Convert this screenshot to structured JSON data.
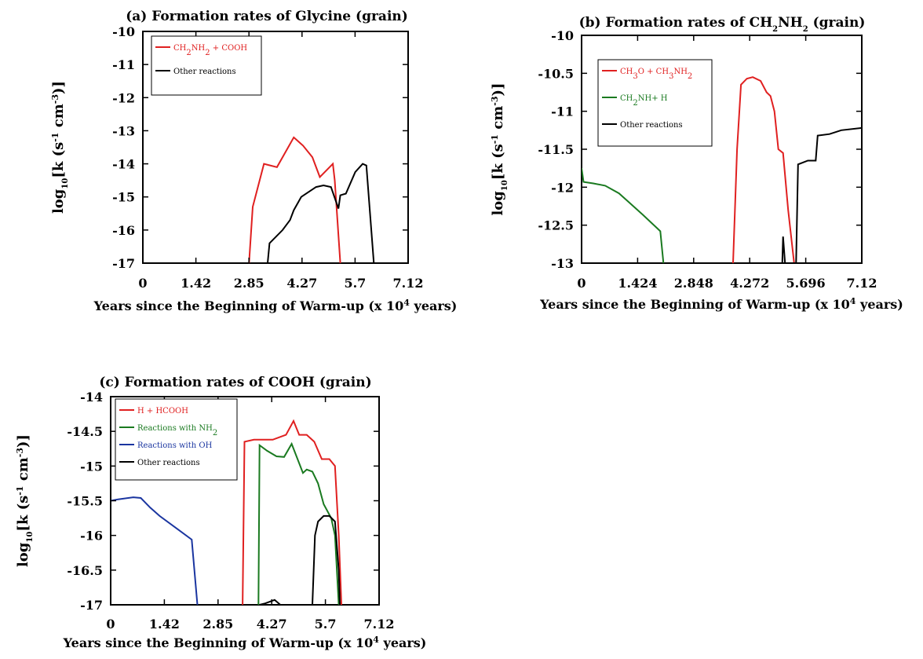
{
  "chart_data": [
    {
      "type": "line",
      "title_prefix": "(a) Formation rates of ",
      "title_species": "Glycine",
      "title_suffix": " (grain)",
      "xlabel": "Years since the Beginning of Warm-up (x 10",
      "xlabel_exp": "4",
      "xlabel_end": " years)",
      "ylabel": "log",
      "ylabel_sub": "10",
      "ylabel_mid": "[k (s",
      "ylabel_sup1": "-1",
      "ylabel_mid2": " cm",
      "ylabel_sup2": "-3",
      "ylabel_end": ")]",
      "xlim": [
        0,
        7.12
      ],
      "ylim": [
        -17,
        -10
      ],
      "xticks": [
        "0",
        "1.42",
        "2.85",
        "4.27",
        "5.7",
        "7.12"
      ],
      "yticks": [
        "-10",
        "-11",
        "-12",
        "-13",
        "-14",
        "-15",
        "-16",
        "-17"
      ],
      "legend_position": "top-left",
      "series": [
        {
          "name": "CH2NH2 + COOH",
          "color": "#e02020",
          "points": [
            [
              2.85,
              -17
            ],
            [
              2.95,
              -15.3
            ],
            [
              3.25,
              -14.0
            ],
            [
              3.6,
              -14.1
            ],
            [
              4.05,
              -13.2
            ],
            [
              4.3,
              -13.45
            ],
            [
              4.55,
              -13.8
            ],
            [
              4.75,
              -14.4
            ],
            [
              5.1,
              -14.0
            ],
            [
              5.15,
              -14.5
            ],
            [
              5.3,
              -17
            ]
          ]
        },
        {
          "name": "Other reactions",
          "color": "#000000",
          "points": [
            [
              3.35,
              -17
            ],
            [
              3.4,
              -16.4
            ],
            [
              3.75,
              -16.0
            ],
            [
              3.95,
              -15.7
            ],
            [
              4.05,
              -15.4
            ],
            [
              4.25,
              -15.0
            ],
            [
              4.65,
              -14.7
            ],
            [
              4.85,
              -14.65
            ],
            [
              5.05,
              -14.7
            ],
            [
              5.25,
              -15.35
            ],
            [
              5.3,
              -14.95
            ],
            [
              5.45,
              -14.9
            ],
            [
              5.7,
              -14.25
            ],
            [
              5.9,
              -14.0
            ],
            [
              6.0,
              -14.05
            ],
            [
              6.2,
              -17
            ]
          ]
        }
      ]
    },
    {
      "type": "line",
      "title_prefix": "(b) Formation rates of ",
      "title_species": "CH2NH2",
      "title_suffix": " (grain)",
      "xlabel": "Years since the Beginning of Warm-up (x 10",
      "xlabel_exp": "4",
      "xlabel_end": " years)",
      "ylabel": "log",
      "ylabel_sub": "10",
      "ylabel_mid": "[k (s",
      "ylabel_sup1": "-1",
      "ylabel_mid2": " cm",
      "ylabel_sup2": "-3",
      "ylabel_end": ")]",
      "xlim": [
        0,
        7.12
      ],
      "ylim": [
        -13,
        -10
      ],
      "xticks": [
        "0",
        "1.424",
        "2.848",
        "4.272",
        "5.696",
        "7.12"
      ],
      "yticks": [
        "-10",
        "-10.5",
        "-11",
        "-11.5",
        "-12",
        "-12.5",
        "-13"
      ],
      "legend_position": "top-left",
      "series": [
        {
          "name": "CH3O + CH3NH2",
          "color": "#e02020",
          "points": [
            [
              3.85,
              -13
            ],
            [
              3.95,
              -11.5
            ],
            [
              4.05,
              -10.65
            ],
            [
              4.2,
              -10.57
            ],
            [
              4.35,
              -10.55
            ],
            [
              4.55,
              -10.6
            ],
            [
              4.7,
              -10.75
            ],
            [
              4.8,
              -10.8
            ],
            [
              4.9,
              -11.0
            ],
            [
              5.0,
              -11.5
            ],
            [
              5.12,
              -11.55
            ],
            [
              5.25,
              -12.3
            ],
            [
              5.4,
              -13
            ]
          ]
        },
        {
          "name": "CH2NH+ H",
          "color": "#1a7a20",
          "points": [
            [
              0,
              -11.75
            ],
            [
              0.05,
              -11.93
            ],
            [
              0.3,
              -11.95
            ],
            [
              0.6,
              -11.98
            ],
            [
              0.95,
              -12.08
            ],
            [
              1.25,
              -12.22
            ],
            [
              1.55,
              -12.36
            ],
            [
              1.9,
              -12.53
            ],
            [
              2.0,
              -12.58
            ],
            [
              2.08,
              -13
            ]
          ]
        },
        {
          "name": "Other reactions",
          "color": "#000000",
          "points": [
            [
              5.1,
              -13
            ],
            [
              5.12,
              -12.65
            ],
            [
              5.17,
              -13
            ],
            [
              5.45,
              -13
            ],
            [
              5.5,
              -11.7
            ],
            [
              5.75,
              -11.65
            ],
            [
              5.95,
              -11.65
            ],
            [
              6.0,
              -11.32
            ],
            [
              6.3,
              -11.3
            ],
            [
              6.6,
              -11.25
            ],
            [
              7.12,
              -11.22
            ]
          ]
        }
      ]
    },
    {
      "type": "line",
      "title_prefix": "(c) Formation rates of ",
      "title_species": "COOH",
      "title_suffix": " (grain)",
      "xlabel": "Years since the Beginning of Warm-up (x 10",
      "xlabel_exp": "4",
      "xlabel_end": " years)",
      "ylabel": "log",
      "ylabel_sub": "10",
      "ylabel_mid": "[k (s",
      "ylabel_sup1": "-1",
      "ylabel_mid2": " cm",
      "ylabel_sup2": "-3",
      "ylabel_end": ")]",
      "xlim": [
        0,
        7.12
      ],
      "ylim": [
        -17,
        -14
      ],
      "xticks": [
        "0",
        "1.42",
        "2.85",
        "4.27",
        "5.7",
        "7.12"
      ],
      "yticks": [
        "-14",
        "-14.5",
        "-15",
        "-15.5",
        "-16",
        "-16.5",
        "-17"
      ],
      "legend_position": "top-left",
      "series": [
        {
          "name": "H + HCOOH",
          "color": "#e02020",
          "points": [
            [
              3.5,
              -17
            ],
            [
              3.55,
              -14.65
            ],
            [
              3.8,
              -14.62
            ],
            [
              4.3,
              -14.62
            ],
            [
              4.65,
              -14.55
            ],
            [
              4.85,
              -14.35
            ],
            [
              5.0,
              -14.55
            ],
            [
              5.2,
              -14.55
            ],
            [
              5.4,
              -14.65
            ],
            [
              5.6,
              -14.9
            ],
            [
              5.8,
              -14.9
            ],
            [
              5.95,
              -15.0
            ],
            [
              6.05,
              -16.0
            ],
            [
              6.12,
              -17
            ]
          ]
        },
        {
          "name": "Reactions with NH",
          "name_sub": "2",
          "color": "#1a7a20",
          "points": [
            [
              3.92,
              -17
            ],
            [
              3.95,
              -14.7
            ],
            [
              4.15,
              -14.78
            ],
            [
              4.4,
              -14.86
            ],
            [
              4.6,
              -14.87
            ],
            [
              4.8,
              -14.68
            ],
            [
              5.1,
              -15.1
            ],
            [
              5.2,
              -15.05
            ],
            [
              5.35,
              -15.08
            ],
            [
              5.5,
              -15.25
            ],
            [
              5.65,
              -15.55
            ],
            [
              5.85,
              -15.75
            ],
            [
              5.95,
              -16.0
            ],
            [
              6.0,
              -16.5
            ],
            [
              6.05,
              -17
            ]
          ]
        },
        {
          "name": "Reactions with OH",
          "color": "#1a35a0",
          "points": [
            [
              0,
              -15.5
            ],
            [
              0.2,
              -15.48
            ],
            [
              0.6,
              -15.45
            ],
            [
              0.8,
              -15.46
            ],
            [
              1.05,
              -15.6
            ],
            [
              1.3,
              -15.72
            ],
            [
              1.75,
              -15.9
            ],
            [
              2.15,
              -16.06
            ],
            [
              2.3,
              -17
            ]
          ]
        },
        {
          "name": "Other reactions",
          "color": "#000000",
          "points": [
            [
              3.95,
              -17
            ],
            [
              4.1,
              -16.98
            ],
            [
              4.35,
              -16.93
            ],
            [
              4.5,
              -17
            ],
            [
              5.35,
              -17
            ],
            [
              5.42,
              -16.0
            ],
            [
              5.5,
              -15.8
            ],
            [
              5.65,
              -15.72
            ],
            [
              5.8,
              -15.72
            ],
            [
              5.95,
              -15.8
            ],
            [
              6.05,
              -16.5
            ],
            [
              6.08,
              -17
            ]
          ]
        }
      ]
    }
  ]
}
